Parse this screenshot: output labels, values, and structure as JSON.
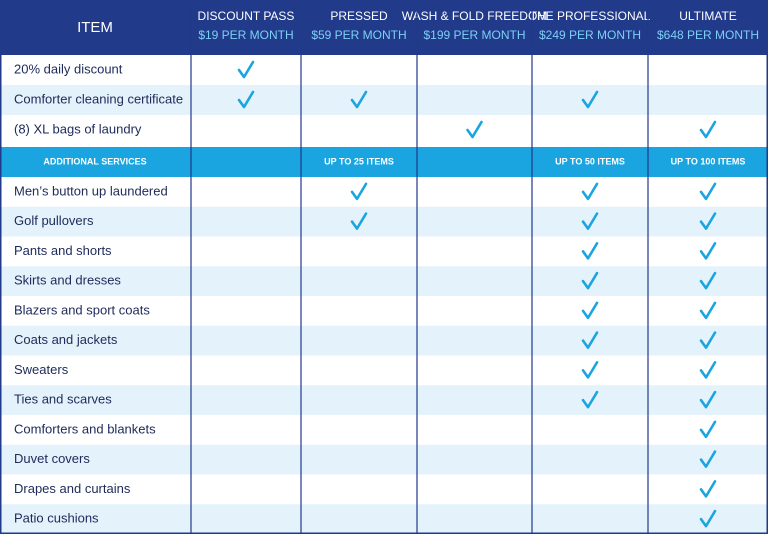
{
  "header": {
    "item": "ITEM",
    "plans": [
      {
        "name": "DISCOUNT PASS",
        "price": "$19 PER MONTH"
      },
      {
        "name": "PRESSED",
        "price": "$59 PER MONTH"
      },
      {
        "name": "WASH & FOLD FREEDOM",
        "price": "$199 PER MONTH"
      },
      {
        "name": "THE PROFESSIONAL",
        "price": "$249 PER MONTH"
      },
      {
        "name": "ULTIMATE",
        "price": "$648 PER MONTH"
      }
    ]
  },
  "rows_top": [
    {
      "label": "20% daily discount",
      "checks": [
        true,
        false,
        false,
        false,
        false
      ]
    },
    {
      "label": "Comforter cleaning certificate",
      "checks": [
        true,
        true,
        false,
        true,
        false
      ]
    },
    {
      "label": "(8) XL bags of laundry",
      "checks": [
        false,
        false,
        true,
        false,
        true
      ]
    }
  ],
  "section": {
    "label": "ADDITIONAL SERVICES",
    "cells": [
      null,
      "UP TO 25 ITEMS",
      null,
      "UP TO 50 ITEMS",
      "UP TO 100 ITEMS"
    ]
  },
  "rows_bottom": [
    {
      "label": "Men’s button up laundered",
      "checks": [
        false,
        true,
        false,
        true,
        true
      ]
    },
    {
      "label": "Golf pullovers",
      "checks": [
        false,
        true,
        false,
        true,
        true
      ]
    },
    {
      "label": "Pants and shorts",
      "checks": [
        false,
        false,
        false,
        true,
        true
      ]
    },
    {
      "label": "Skirts and dresses",
      "checks": [
        false,
        false,
        false,
        true,
        true
      ]
    },
    {
      "label": "Blazers and sport coats",
      "checks": [
        false,
        false,
        false,
        true,
        true
      ]
    },
    {
      "label": "Coats and jackets",
      "checks": [
        false,
        false,
        false,
        true,
        true
      ]
    },
    {
      "label": "Sweaters",
      "checks": [
        false,
        false,
        false,
        true,
        true
      ]
    },
    {
      "label": "Ties and scarves",
      "checks": [
        false,
        false,
        false,
        true,
        true
      ]
    },
    {
      "label": "Comforters and blankets",
      "checks": [
        false,
        false,
        false,
        false,
        true
      ]
    },
    {
      "label": "Duvet covers",
      "checks": [
        false,
        false,
        false,
        false,
        true
      ]
    },
    {
      "label": "Drapes and curtains",
      "checks": [
        false,
        false,
        false,
        false,
        true
      ]
    },
    {
      "label": "Patio cushions",
      "checks": [
        false,
        false,
        false,
        false,
        true
      ]
    }
  ]
}
